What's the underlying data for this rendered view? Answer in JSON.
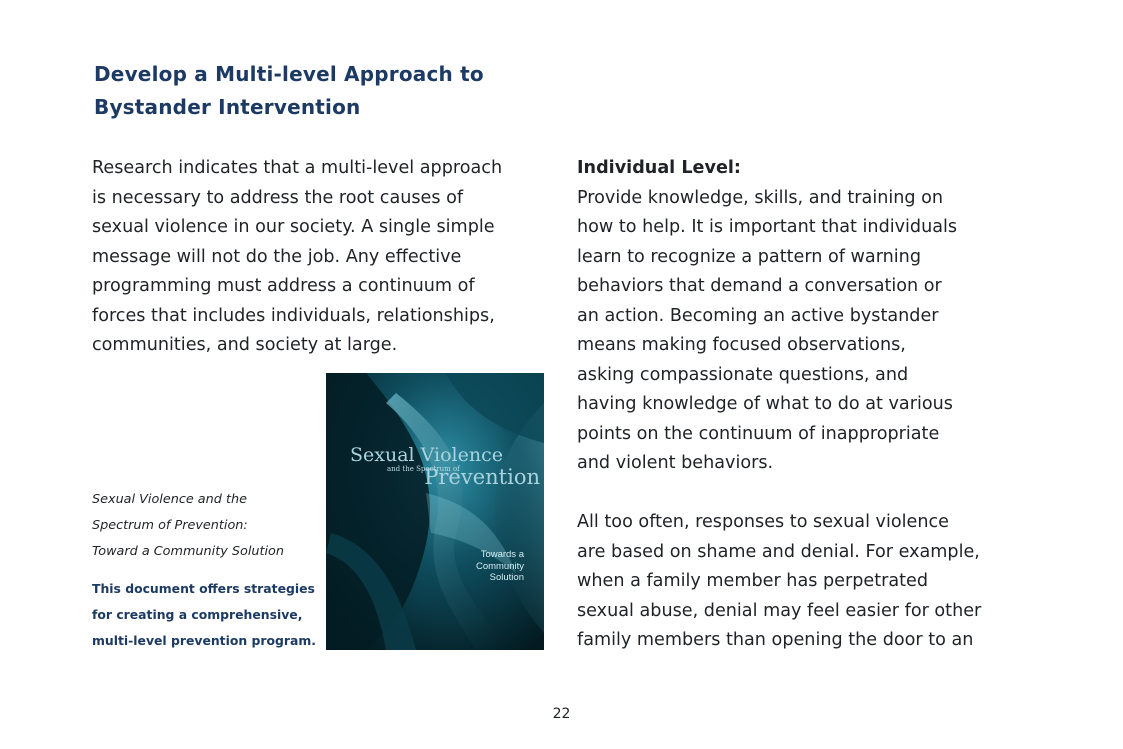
{
  "heading": {
    "lines": [
      "Develop a Multi-level Approach to",
      "Bystander Intervention"
    ]
  },
  "left_column": {
    "lines": [
      "Research indicates that a multi-level approach",
      "is necessary to address the root causes of",
      "sexual violence in our society. A single simple",
      "message will not do the job. Any effective",
      "programming must address a continuum of",
      "forces that includes individuals, relationships,",
      "communities, and society at large."
    ]
  },
  "caption": {
    "title_lines": [
      "Sexual Violence and the",
      "Spectrum of Prevention:",
      "Toward a Community Solution"
    ],
    "description_lines": [
      "This document offers strategies",
      "for creating a comprehensive,",
      "multi-level prevention program."
    ]
  },
  "cover": {
    "title_line1": "Sexual Violence",
    "title_small": "and the Spectrum of",
    "title_line2": "Prevention",
    "subtitle_lines": [
      "Towards a",
      "Community",
      "Solution"
    ]
  },
  "right_column": {
    "heading": "Individual Level:",
    "paragraph1_lines": [
      "Provide knowledge, skills, and training on",
      "how to help. It is important that individuals",
      "learn to recognize a pattern of warning",
      "behaviors that demand a conversation or",
      "an action. Becoming an active bystander",
      "means making focused observations,",
      "asking compassionate questions, and",
      "having knowledge of what to do at various",
      "points on the continuum of inappropriate",
      "and violent behaviors."
    ],
    "paragraph2_lines": [
      "All too often, responses to sexual violence",
      "are based on shame and denial. For example,",
      "when a family member has perpetrated",
      "sexual abuse, denial may feel easier for other",
      "family members than opening the door to an"
    ]
  },
  "page_number": "22"
}
